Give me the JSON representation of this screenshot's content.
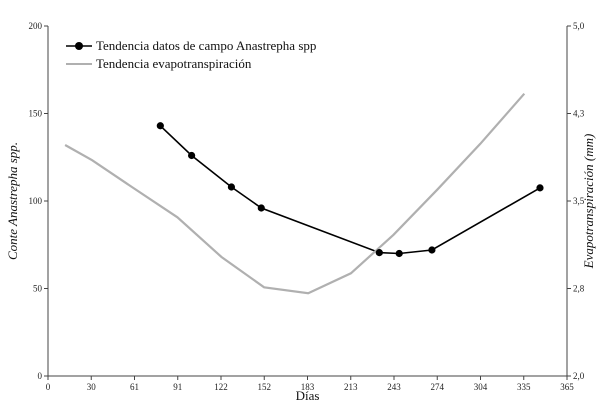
{
  "chart_data": {
    "type": "line",
    "title": "",
    "xlabel": "Días",
    "ylabel": "Conte Anastrepha spp.",
    "y2label": "Evapotranspiración (mm)",
    "xlim": [
      0,
      365
    ],
    "ylim": [
      0,
      200
    ],
    "y2lim": [
      2.0,
      5.0
    ],
    "x_ticks": [
      "0",
      "30",
      "61",
      "91",
      "122",
      "152",
      "183",
      "213",
      "243",
      "274",
      "304",
      "335",
      "365"
    ],
    "y_ticks": [
      "0",
      "50",
      "100",
      "150",
      "200"
    ],
    "y2_ticks": [
      "2,0",
      "2,8",
      "3,5",
      "4,3",
      "5,0"
    ],
    "legend_position": "top-left",
    "grid": false,
    "series": [
      {
        "name": "Tendencia datos de campo Anastrepha spp",
        "axis": "left",
        "color": "#000000",
        "marker": "circle",
        "x": [
          79,
          101,
          129,
          150,
          233,
          247,
          270,
          346
        ],
        "y": [
          143,
          126,
          108,
          96,
          70.5,
          70,
          72,
          107.5
        ]
      },
      {
        "name": "Tendencia evapotranspiración",
        "axis": "right",
        "color": "#b0b0b0",
        "marker": "none",
        "x": [
          12,
          31,
          59,
          91,
          122,
          152,
          183,
          213,
          243,
          274,
          304,
          335
        ],
        "y": [
          3.98,
          3.85,
          3.62,
          3.36,
          3.02,
          2.76,
          2.71,
          2.88,
          3.21,
          3.6,
          3.99,
          4.42
        ]
      }
    ]
  }
}
